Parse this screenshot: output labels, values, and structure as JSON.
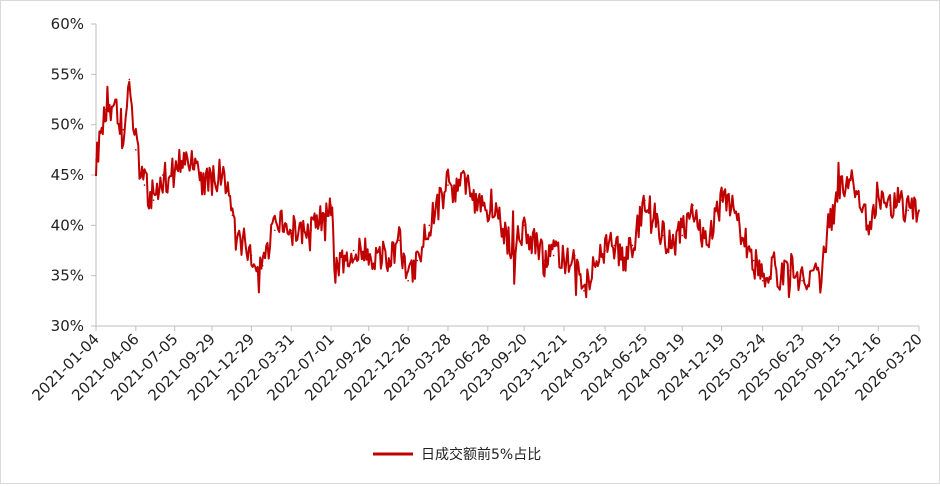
{
  "chart_data": {
    "type": "line",
    "title": "",
    "xlabel": "",
    "ylabel": "",
    "y_ticks": [
      "30%",
      "35%",
      "40%",
      "45%",
      "50%",
      "55%",
      "60%"
    ],
    "ylim": [
      30,
      60
    ],
    "x_ticks": [
      "2021-01-04",
      "2021-04-06",
      "2021-07-05",
      "2021-09-29",
      "2021-12-29",
      "2022-03-31",
      "2022-07-01",
      "2022-09-26",
      "2022-12-26",
      "2023-03-28",
      "2023-06-28",
      "2023-09-20",
      "2023-12-21",
      "2024-03-25",
      "2024-06-25",
      "2024-09-19",
      "2024-12-19",
      "2025-03-24",
      "2025-06-23",
      "2025-09-15",
      "2025-12-16",
      "2026-03-20"
    ],
    "grid": false,
    "legend_position": "bottom-center",
    "series": [
      {
        "name": "日成交额前5%占比",
        "color": "#c00000",
        "x": [
          "2021-01-04",
          "2021-01-25",
          "2021-02-15",
          "2021-03-08",
          "2021-03-22",
          "2021-04-06",
          "2021-04-26",
          "2021-05-17",
          "2021-06-07",
          "2021-06-21",
          "2021-07-05",
          "2021-07-26",
          "2021-08-16",
          "2021-09-06",
          "2021-09-29",
          "2021-10-25",
          "2021-11-15",
          "2021-12-06",
          "2021-12-29",
          "2022-01-24",
          "2022-02-21",
          "2022-03-14",
          "2022-03-31",
          "2022-04-25",
          "2022-05-16",
          "2022-06-06",
          "2022-07-01",
          "2022-07-11",
          "2022-08-01",
          "2022-08-22",
          "2022-09-26",
          "2022-10-24",
          "2022-11-14",
          "2022-12-05",
          "2022-12-26",
          "2023-01-16",
          "2023-02-13",
          "2023-03-06",
          "2023-03-28",
          "2023-04-17",
          "2023-05-08",
          "2023-05-29",
          "2023-06-28",
          "2023-07-17",
          "2023-08-07",
          "2023-08-28",
          "2023-09-20",
          "2023-10-16",
          "2023-11-06",
          "2023-11-27",
          "2023-12-21",
          "2024-01-15",
          "2024-02-05",
          "2024-02-26",
          "2024-03-25",
          "2024-04-15",
          "2024-05-06",
          "2024-05-27",
          "2024-06-25",
          "2024-07-15",
          "2024-08-05",
          "2024-08-26",
          "2024-09-19",
          "2024-10-14",
          "2024-11-04",
          "2024-11-25",
          "2024-12-19",
          "2025-01-13",
          "2025-02-10",
          "2025-03-03",
          "2025-03-24",
          "2025-04-14",
          "2025-05-05",
          "2025-05-26",
          "2025-06-23",
          "2025-07-14",
          "2025-08-04",
          "2025-08-25",
          "2025-09-15",
          "2025-10-13",
          "2025-11-03",
          "2025-11-24",
          "2025-12-16",
          "2026-01-12",
          "2026-02-02",
          "2026-02-23",
          "2026-03-20"
        ],
        "values": [
          46.5,
          51.5,
          52.0,
          49.5,
          54.5,
          47.5,
          44.0,
          42.5,
          45.0,
          44.5,
          45.5,
          47.0,
          46.5,
          44.0,
          44.5,
          45.5,
          41.0,
          38.5,
          37.0,
          36.0,
          39.5,
          40.0,
          39.5,
          39.0,
          39.5,
          40.5,
          42.0,
          35.5,
          37.0,
          37.5,
          37.0,
          37.0,
          36.5,
          38.5,
          34.5,
          36.5,
          40.0,
          42.5,
          44.0,
          43.5,
          44.5,
          42.0,
          41.0,
          41.5,
          39.0,
          37.5,
          40.0,
          38.0,
          36.5,
          37.0,
          36.5,
          37.0,
          33.5,
          36.0,
          37.5,
          38.0,
          36.5,
          38.0,
          42.5,
          41.0,
          39.0,
          38.5,
          39.0,
          42.0,
          39.0,
          39.5,
          42.5,
          42.0,
          38.5,
          36.5,
          34.5,
          36.0,
          35.0,
          35.5,
          34.5,
          35.5,
          34.0,
          40.5,
          43.0,
          44.5,
          42.0,
          40.0,
          43.5,
          42.0,
          42.5,
          41.5,
          41.5
        ]
      }
    ]
  }
}
